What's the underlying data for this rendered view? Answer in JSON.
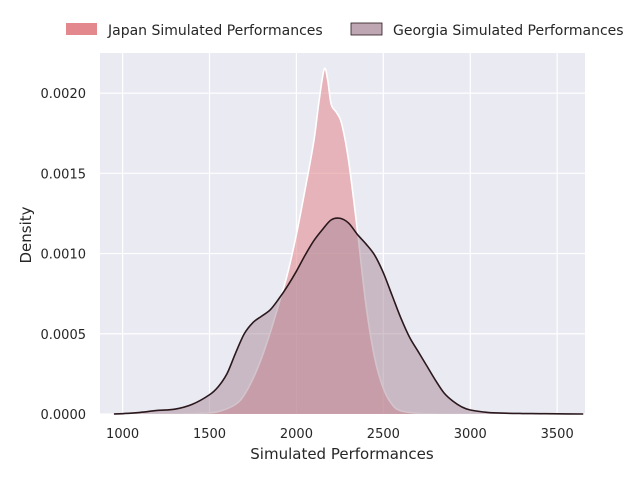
{
  "chart_data": {
    "type": "area",
    "title": "",
    "xlabel": "Simulated Performances",
    "ylabel": "Density",
    "xlim": [
      870,
      3660
    ],
    "ylim": [
      0,
      0.00225
    ],
    "xticks": [
      1000,
      1500,
      2000,
      2500,
      3000,
      3500
    ],
    "yticks": [
      0.0,
      0.0005,
      0.001,
      0.0015,
      0.002
    ],
    "ytick_labels": [
      "0.0000",
      "0.0005",
      "0.0010",
      "0.0015",
      "0.0020"
    ],
    "grid": true,
    "legend_position": "top, above plot",
    "series": [
      {
        "name": "Japan Simulated Performances",
        "fill": "#e07b7f",
        "fill_opacity": 0.5,
        "edge": "#ffffff",
        "points": [
          [
            1350,
            0.0
          ],
          [
            1450,
            4e-06
          ],
          [
            1550,
            1.5e-05
          ],
          [
            1650,
            6e-05
          ],
          [
            1700,
            0.00012
          ],
          [
            1750,
            0.00022
          ],
          [
            1800,
            0.00035
          ],
          [
            1850,
            0.00051
          ],
          [
            1900,
            0.00069
          ],
          [
            1950,
            0.00088
          ],
          [
            2000,
            0.00112
          ],
          [
            2050,
            0.0014
          ],
          [
            2100,
            0.0017
          ],
          [
            2130,
            0.00195
          ],
          [
            2160,
            0.00215
          ],
          [
            2180,
            0.00208
          ],
          [
            2200,
            0.00193
          ],
          [
            2230,
            0.00188
          ],
          [
            2260,
            0.00181
          ],
          [
            2300,
            0.00158
          ],
          [
            2350,
            0.00115
          ],
          [
            2400,
            0.00068
          ],
          [
            2450,
            0.00035
          ],
          [
            2500,
            0.00016
          ],
          [
            2550,
            6e-05
          ],
          [
            2600,
            2e-05
          ],
          [
            2700,
            4e-06
          ],
          [
            2800,
            0.0
          ]
        ]
      },
      {
        "name": "Georgia Simulated Performances",
        "fill": "#a88898",
        "fill_opacity": 0.5,
        "edge": "#2a181c",
        "points": [
          [
            950,
            0.0
          ],
          [
            1000,
            2e-06
          ],
          [
            1100,
            1e-05
          ],
          [
            1200,
            2.2e-05
          ],
          [
            1300,
            3e-05
          ],
          [
            1400,
            6e-05
          ],
          [
            1500,
            0.00012
          ],
          [
            1550,
            0.00017
          ],
          [
            1600,
            0.00025
          ],
          [
            1650,
            0.00038
          ],
          [
            1700,
            0.0005
          ],
          [
            1750,
            0.00057
          ],
          [
            1800,
            0.00061
          ],
          [
            1850,
            0.00065
          ],
          [
            1900,
            0.00072
          ],
          [
            1950,
            0.0008
          ],
          [
            2000,
            0.00089
          ],
          [
            2050,
            0.00099
          ],
          [
            2100,
            0.00108
          ],
          [
            2150,
            0.00115
          ],
          [
            2200,
            0.00121
          ],
          [
            2250,
            0.00122
          ],
          [
            2300,
            0.00119
          ],
          [
            2350,
            0.00112
          ],
          [
            2400,
            0.00106
          ],
          [
            2450,
            0.00099
          ],
          [
            2500,
            0.00088
          ],
          [
            2550,
            0.00074
          ],
          [
            2600,
            0.0006
          ],
          [
            2650,
            0.00048
          ],
          [
            2700,
            0.00039
          ],
          [
            2750,
            0.0003
          ],
          [
            2800,
            0.00021
          ],
          [
            2850,
            0.00013
          ],
          [
            2900,
            8e-05
          ],
          [
            2950,
            4.5e-05
          ],
          [
            3000,
            2.5e-05
          ],
          [
            3100,
            1e-05
          ],
          [
            3200,
            5e-06
          ],
          [
            3300,
            3e-06
          ],
          [
            3400,
            2e-06
          ],
          [
            3500,
            1e-06
          ],
          [
            3650,
            0.0
          ]
        ]
      }
    ]
  }
}
